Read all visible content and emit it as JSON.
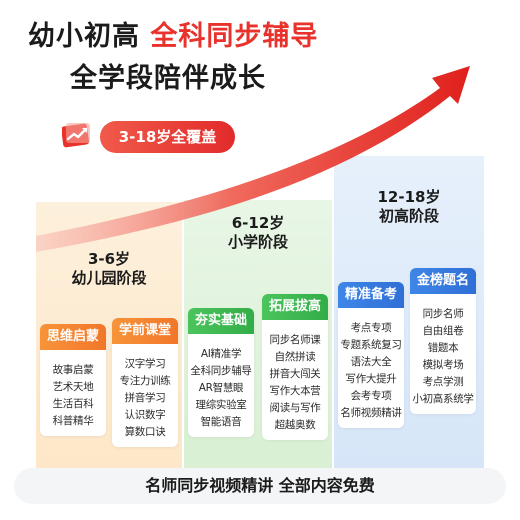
{
  "headline": {
    "line1_prefix": "幼小初高",
    "line1_highlight": "全科同步辅导",
    "line2": "全学段陪伴成长"
  },
  "coverage": {
    "label": "3-18岁全覆盖"
  },
  "stages": [
    {
      "age": "3-6岁",
      "name": "幼儿园阶段",
      "cards": [
        {
          "title": "思维启蒙",
          "items": [
            "故事启蒙",
            "艺术天地",
            "生活百科",
            "科普精华"
          ]
        },
        {
          "title": "学前课堂",
          "items": [
            "汉字学习",
            "专注力训练",
            "拼音学习",
            "认识数字",
            "算数口诀"
          ]
        }
      ]
    },
    {
      "age": "6-12岁",
      "name": "小学阶段",
      "cards": [
        {
          "title": "夯实基础",
          "items": [
            "AI精准学",
            "全科同步辅导",
            "AR智慧眼",
            "理综实验室",
            "智能语音"
          ]
        },
        {
          "title": "拓展拔高",
          "items": [
            "同步名师课",
            "自然拼读",
            "拼音大闯关",
            "写作大本营",
            "阅读与写作",
            "超越奥数"
          ]
        }
      ]
    },
    {
      "age": "12-18岁",
      "name": "初高阶段",
      "cards": [
        {
          "title": "精准备考",
          "items": [
            "考点专项",
            "专题系统复习",
            "语法大全",
            "写作大提升",
            "会考专项",
            "名师视频精讲"
          ]
        },
        {
          "title": "金榜题名",
          "items": [
            "同步名师",
            "自由组卷",
            "错题本",
            "模拟考场",
            "考点学测",
            "小初高系统学"
          ]
        }
      ]
    }
  ],
  "footer": {
    "text": "名师同步视频精讲  全部内容免费"
  },
  "colors": {
    "accent_red": "#e8322b",
    "kindergarten_orange": "#f2762a",
    "primary_green": "#33ad47",
    "secondary_blue": "#2f6fd6"
  }
}
